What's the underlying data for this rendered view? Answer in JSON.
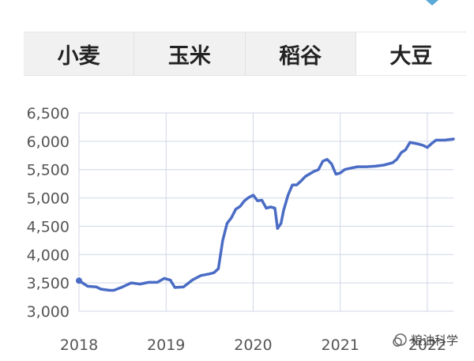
{
  "tabs": [
    {
      "label": "小麦",
      "active": false
    },
    {
      "label": "玉米",
      "active": false
    },
    {
      "label": "稻谷",
      "active": false
    },
    {
      "label": "大豆",
      "active": true
    }
  ],
  "colors": {
    "line": "#4a6cc4",
    "grid": "#cfd6e6",
    "axis_text": "#555555"
  },
  "watermark": "粮油科学",
  "chart_data": {
    "type": "line",
    "title": "",
    "xlabel": "",
    "ylabel": "",
    "xlim": [
      2018.0,
      2022.3
    ],
    "ylim": [
      3000,
      6500
    ],
    "x_ticks": [
      {
        "value": 2018,
        "label": "2018"
      },
      {
        "value": 2019,
        "label": "2019"
      },
      {
        "value": 2020,
        "label": "2020"
      },
      {
        "value": 2021,
        "label": "2021"
      },
      {
        "value": 2022,
        "label": "2022"
      }
    ],
    "y_ticks": [
      {
        "value": 3000,
        "label": "3,000"
      },
      {
        "value": 3500,
        "label": "3,500"
      },
      {
        "value": 4000,
        "label": "4,000"
      },
      {
        "value": 4500,
        "label": "4,500"
      },
      {
        "value": 5000,
        "label": "5,000"
      },
      {
        "value": 5500,
        "label": "5,500"
      },
      {
        "value": 6000,
        "label": "6,000"
      },
      {
        "value": 6500,
        "label": "6,500"
      }
    ],
    "grid": true,
    "series": [
      {
        "x": [
          2018.0,
          2018.04,
          2018.1,
          2018.2,
          2018.25,
          2018.35,
          2018.4,
          2018.5,
          2018.6,
          2018.7,
          2018.8,
          2018.9,
          2018.98,
          2019.05,
          2019.1,
          2019.2,
          2019.3,
          2019.4,
          2019.5,
          2019.55,
          2019.6,
          2019.65,
          2019.7,
          2019.75,
          2019.8,
          2019.85,
          2019.9,
          2019.95,
          2020.0,
          2020.05,
          2020.1,
          2020.15,
          2020.2,
          2020.25,
          2020.28,
          2020.32,
          2020.35,
          2020.4,
          2020.45,
          2020.5,
          2020.55,
          2020.6,
          2020.7,
          2020.75,
          2020.8,
          2020.85,
          2020.9,
          2020.95,
          2021.0,
          2021.05,
          2021.1,
          2021.2,
          2021.3,
          2021.4,
          2021.5,
          2021.6,
          2021.65,
          2021.7,
          2021.75,
          2021.8,
          2021.9,
          2021.95,
          2022.0,
          2022.05,
          2022.1,
          2022.2,
          2022.3
        ],
        "y": [
          3540,
          3500,
          3440,
          3430,
          3390,
          3370,
          3370,
          3430,
          3500,
          3480,
          3510,
          3510,
          3580,
          3550,
          3420,
          3430,
          3550,
          3630,
          3660,
          3680,
          3750,
          4250,
          4550,
          4650,
          4800,
          4850,
          4950,
          5010,
          5050,
          4950,
          4960,
          4820,
          4840,
          4820,
          4460,
          4550,
          4780,
          5050,
          5230,
          5230,
          5300,
          5380,
          5470,
          5500,
          5650,
          5680,
          5600,
          5420,
          5440,
          5500,
          5520,
          5550,
          5550,
          5560,
          5580,
          5620,
          5680,
          5800,
          5850,
          5980,
          5950,
          5930,
          5890,
          5960,
          6020,
          6020,
          6040
        ]
      }
    ]
  }
}
